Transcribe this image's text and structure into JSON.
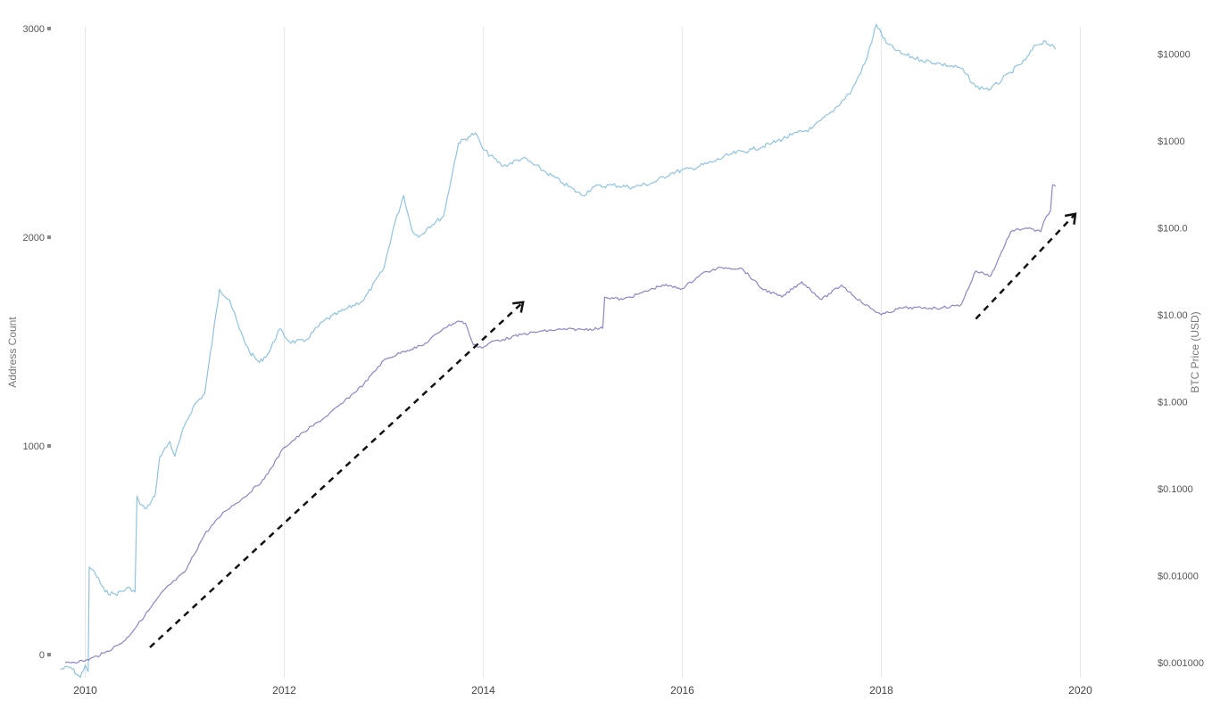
{
  "chart_data": {
    "type": "line",
    "title": "",
    "x_axis": {
      "ticks": [
        "2010",
        "2012",
        "2014",
        "2016",
        "2018",
        "2020"
      ],
      "range": [
        2009.9,
        2021.0
      ],
      "grid": true
    },
    "y_axis_left": {
      "label": "Address Count",
      "ticks": [
        "0",
        "1000",
        "2000",
        "3000"
      ],
      "range": [
        -100,
        3050
      ]
    },
    "y_axis_right": {
      "label": "BTC Price (USD)",
      "scale": "log",
      "ticks": [
        "$0.001000",
        "$0.01000",
        "$0.1000",
        "$1.000",
        "$10.00",
        "$100.0",
        "$1000",
        "$10000"
      ],
      "range": [
        0.001,
        20000
      ]
    },
    "series": [
      {
        "axis": "left",
        "color": "#8fc4e0",
        "x": [
          2009.75,
          2009.85,
          2009.95,
          2010.0,
          2010.03,
          2010.04,
          2010.1,
          2010.2,
          2010.3,
          2010.45,
          2010.5,
          2010.52,
          2010.55,
          2010.6,
          2010.65,
          2010.7,
          2010.75,
          2010.85,
          2010.9,
          2011.0,
          2011.1,
          2011.2,
          2011.35,
          2011.45,
          2011.55,
          2011.65,
          2011.75,
          2011.85,
          2011.95,
          2012.05,
          2012.2,
          2012.4,
          2012.6,
          2012.8,
          2013.0,
          2013.1,
          2013.2,
          2013.28,
          2013.35,
          2013.45,
          2013.6,
          2013.75,
          2013.85,
          2013.92,
          2014.0,
          2014.2,
          2014.4,
          2014.6,
          2014.8,
          2015.0,
          2015.1,
          2015.3,
          2015.5,
          2015.7,
          2015.9,
          2016.1,
          2016.3,
          2016.5,
          2016.7,
          2016.9,
          2017.1,
          2017.3,
          2017.5,
          2017.7,
          2017.85,
          2017.95,
          2018.05,
          2018.2,
          2018.4,
          2018.6,
          2018.8,
          2018.95,
          2019.1,
          2019.3,
          2019.45,
          2019.55,
          2019.65,
          2019.75
        ],
        "y": [
          -70,
          -60,
          -110,
          -50,
          -80,
          420,
          390,
          300,
          290,
          320,
          300,
          760,
          720,
          700,
          720,
          760,
          950,
          1020,
          950,
          1100,
          1200,
          1250,
          1750,
          1700,
          1560,
          1450,
          1400,
          1450,
          1560,
          1500,
          1500,
          1600,
          1650,
          1700,
          1850,
          2050,
          2200,
          2040,
          2000,
          2050,
          2100,
          2450,
          2480,
          2500,
          2420,
          2340,
          2380,
          2320,
          2260,
          2200,
          2240,
          2250,
          2240,
          2260,
          2310,
          2330,
          2360,
          2400,
          2420,
          2450,
          2490,
          2520,
          2600,
          2700,
          2850,
          3020,
          2930,
          2880,
          2850,
          2830,
          2810,
          2720,
          2710,
          2790,
          2850,
          2920,
          2940,
          2900
        ]
      },
      {
        "axis": "right",
        "color": "#8d84c8",
        "x": [
          2009.8,
          2010.0,
          2010.2,
          2010.4,
          2010.6,
          2010.8,
          2011.0,
          2011.2,
          2011.4,
          2011.6,
          2011.8,
          2012.0,
          2012.2,
          2012.4,
          2012.6,
          2012.8,
          2013.0,
          2013.2,
          2013.4,
          2013.6,
          2013.75,
          2013.82,
          2013.9,
          2014.0,
          2014.1,
          2014.2,
          2014.4,
          2014.6,
          2014.8,
          2015.0,
          2015.2,
          2015.22,
          2015.4,
          2015.6,
          2015.8,
          2016.0,
          2016.2,
          2016.4,
          2016.6,
          2016.8,
          2017.0,
          2017.2,
          2017.4,
          2017.6,
          2017.8,
          2018.0,
          2018.2,
          2018.4,
          2018.6,
          2018.8,
          2018.95,
          2019.1,
          2019.3,
          2019.45,
          2019.6,
          2019.65,
          2019.7,
          2019.72,
          2019.75
        ],
        "y": [
          0.001,
          0.00105,
          0.0013,
          0.0018,
          0.0035,
          0.007,
          0.011,
          0.03,
          0.055,
          0.08,
          0.13,
          0.3,
          0.45,
          0.65,
          1.0,
          1.6,
          3.0,
          3.8,
          4.5,
          7.0,
          8.5,
          8.0,
          4.5,
          4.2,
          5.0,
          5.2,
          6.0,
          6.5,
          6.8,
          6.8,
          7.0,
          16.0,
          15.0,
          18.0,
          22.0,
          20.0,
          30.0,
          35.0,
          34.0,
          20.0,
          16.0,
          24.0,
          15.0,
          22.0,
          14.0,
          10.0,
          12.0,
          12.0,
          12.0,
          13.0,
          32.0,
          28.0,
          90.0,
          100.0,
          90.0,
          130.0,
          160.0,
          310.0,
          300.0
        ]
      }
    ],
    "annotations": [
      {
        "type": "dashed-arrow",
        "from": [
          2010.65,
          0.0015
        ],
        "to": [
          2014.4,
          14.0
        ]
      },
      {
        "type": "dashed-arrow",
        "from": [
          2018.95,
          9.0
        ],
        "to": [
          2019.95,
          145.0
        ]
      }
    ]
  }
}
